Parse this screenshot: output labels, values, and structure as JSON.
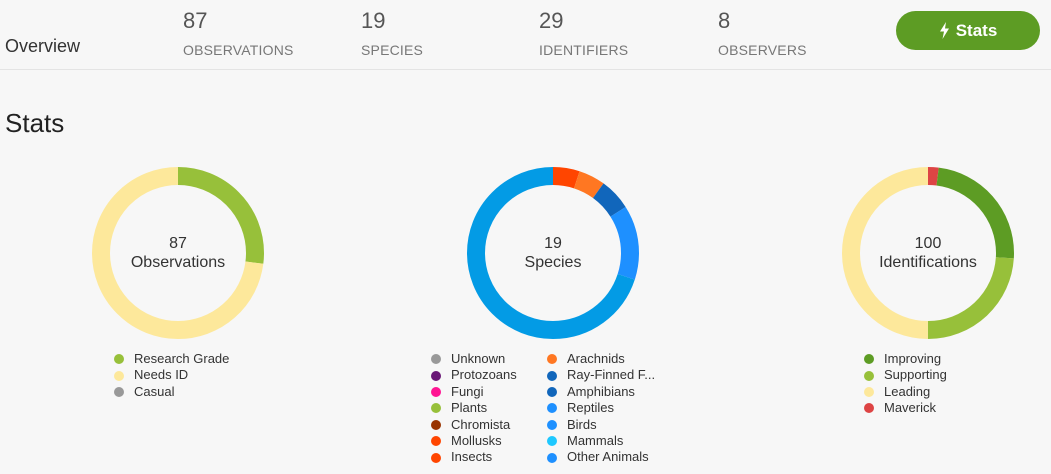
{
  "header": {
    "overview_label": "Overview",
    "metrics": [
      {
        "number": "87",
        "label": "OBSERVATIONS"
      },
      {
        "number": "19",
        "label": "SPECIES"
      },
      {
        "number": "29",
        "label": "IDENTIFIERS"
      },
      {
        "number": "8",
        "label": "OBSERVERS"
      }
    ],
    "stats_button": {
      "label": "Stats",
      "icon": "bolt-icon",
      "color": "#5d9c24"
    }
  },
  "section_title": "Stats",
  "donuts": [
    {
      "number": "87",
      "caption": "Observations",
      "slices": [
        {
          "name": "Research Grade",
          "fraction": 0.27,
          "color": "#97c03a"
        },
        {
          "name": "Needs ID",
          "fraction": 0.73,
          "color": "#fde89b"
        },
        {
          "name": "Casual",
          "fraction": 0.0,
          "color": "#999999"
        }
      ]
    },
    {
      "number": "19",
      "caption": "Species",
      "slices": [
        {
          "name": "Mollusks",
          "fraction": 0.05,
          "color": "#ff4500"
        },
        {
          "name": "Arachnids",
          "fraction": 0.05,
          "color": "#ff7722"
        },
        {
          "name": "Ray-Finned F...",
          "fraction": 0.06,
          "color": "#1166bb"
        },
        {
          "name": "Reptiles",
          "fraction": 0.14,
          "color": "#1e90ff"
        },
        {
          "name": "Birds",
          "fraction": 0.7,
          "color": "#039be5"
        }
      ]
    },
    {
      "number": "100",
      "caption": "Identifications",
      "slices": [
        {
          "name": "Maverick",
          "fraction": 0.02,
          "color": "#dd4444"
        },
        {
          "name": "Improving",
          "fraction": 0.24,
          "color": "#5d9c24"
        },
        {
          "name": "Supporting",
          "fraction": 0.24,
          "color": "#97c03a"
        },
        {
          "name": "Leading",
          "fraction": 0.5,
          "color": "#fde89b"
        }
      ]
    }
  ],
  "legends": {
    "observations": [
      {
        "label": "Research Grade",
        "color": "#97c03a"
      },
      {
        "label": "Needs ID",
        "color": "#fde89b"
      },
      {
        "label": "Casual",
        "color": "#999999"
      }
    ],
    "species_col1": [
      {
        "label": "Unknown",
        "color": "#999999"
      },
      {
        "label": "Protozoans",
        "color": "#691776"
      },
      {
        "label": "Fungi",
        "color": "#ff1493"
      },
      {
        "label": "Plants",
        "color": "#97c03a"
      },
      {
        "label": "Chromista",
        "color": "#993300"
      },
      {
        "label": "Mollusks",
        "color": "#ff4500"
      },
      {
        "label": "Insects",
        "color": "#ff4500"
      }
    ],
    "species_col2": [
      {
        "label": "Arachnids",
        "color": "#ff7722"
      },
      {
        "label": "Ray-Finned F...",
        "color": "#1166bb"
      },
      {
        "label": "Amphibians",
        "color": "#1166bb"
      },
      {
        "label": "Reptiles",
        "color": "#1e90ff"
      },
      {
        "label": "Birds",
        "color": "#1e90ff"
      },
      {
        "label": "Mammals",
        "color": "#1ec8ff"
      },
      {
        "label": "Other Animals",
        "color": "#1e90ff"
      }
    ],
    "identifications": [
      {
        "label": "Improving",
        "color": "#5d9c24"
      },
      {
        "label": "Supporting",
        "color": "#97c03a"
      },
      {
        "label": "Leading",
        "color": "#fde89b"
      },
      {
        "label": "Maverick",
        "color": "#dd4444"
      }
    ]
  }
}
